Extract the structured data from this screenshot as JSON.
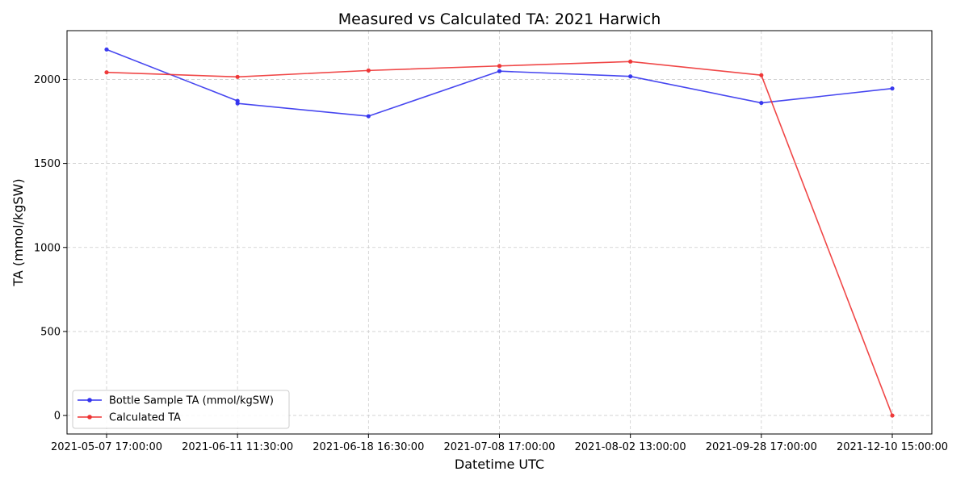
{
  "chart_data": {
    "type": "line",
    "title": "Measured vs Calculated TA: 2021 Harwich",
    "xlabel": "Datetime UTC",
    "ylabel": "TA (mmol/kgSW)",
    "ylim": [
      -110,
      2290
    ],
    "yticks": [
      0,
      500,
      1000,
      1500,
      2000
    ],
    "categories": [
      "2021-05-07 17:00:00",
      "2021-06-11 11:30:00",
      "2021-06-18 16:30:00",
      "2021-07-08 17:00:00",
      "2021-08-02 13:00:00",
      "2021-09-28 17:00:00",
      "2021-12-10 15:00:00"
    ],
    "grid": true,
    "legend_position": "lower-left",
    "series": [
      {
        "name": "Bottle Sample TA (mmol/kgSW)",
        "color": "#3333ee",
        "points": [
          {
            "x": 0,
            "y": 2178
          },
          {
            "x": 1,
            "y": 1872
          },
          {
            "x": 1,
            "y": 1857
          },
          {
            "x": 2,
            "y": 1781
          },
          {
            "x": 3,
            "y": 2049
          },
          {
            "x": 4,
            "y": 2018
          },
          {
            "x": 5,
            "y": 1860
          },
          {
            "x": 6,
            "y": 1946
          }
        ]
      },
      {
        "name": "Calculated TA",
        "color": "#ee3333",
        "points": [
          {
            "x": 0,
            "y": 2042
          },
          {
            "x": 1,
            "y": 2015
          },
          {
            "x": 2,
            "y": 2053
          },
          {
            "x": 3,
            "y": 2080
          },
          {
            "x": 4,
            "y": 2106
          },
          {
            "x": 5,
            "y": 2025
          },
          {
            "x": 6,
            "y": 0
          }
        ]
      }
    ]
  }
}
